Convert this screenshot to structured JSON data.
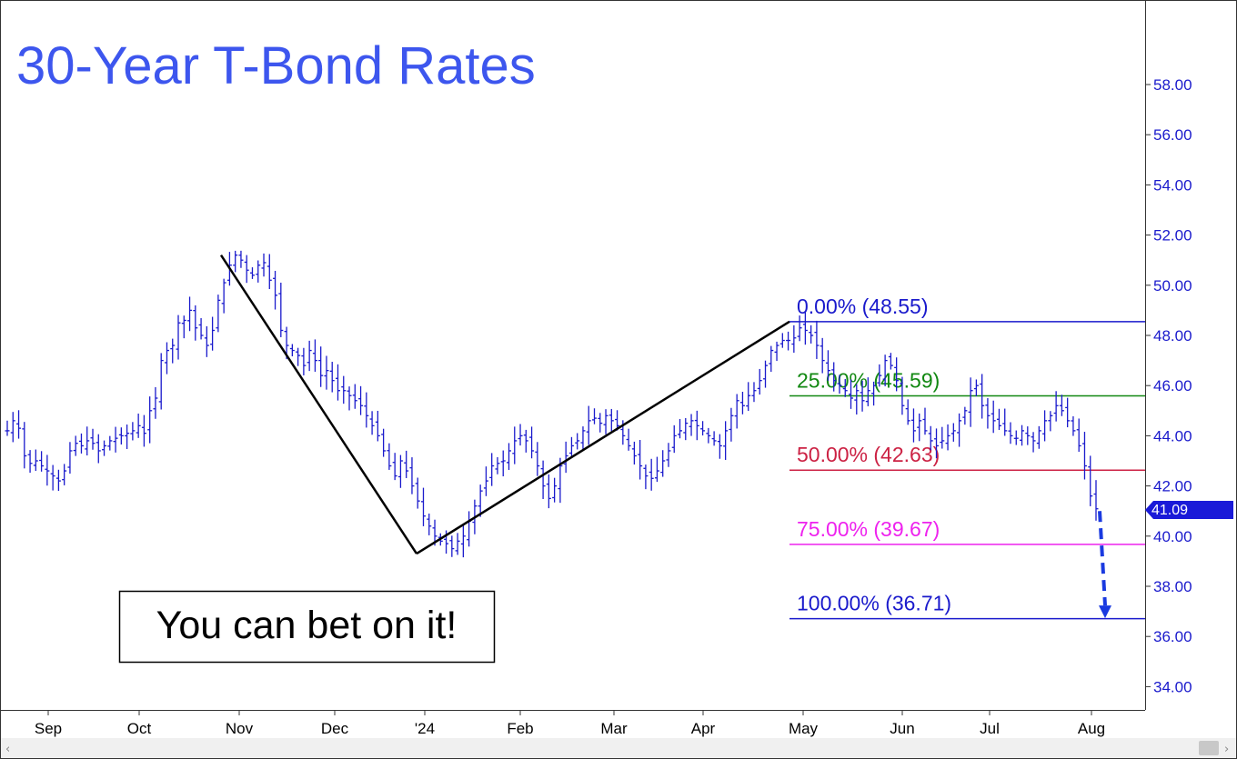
{
  "chart_data": {
    "type": "bar",
    "subtype": "ohlc",
    "title": "30-Year T-Bond Rates",
    "annotation_box": "You can bet on it!",
    "last_price": "41.09",
    "y_axis": {
      "side": "right",
      "ylim": [
        33.0,
        61.5
      ],
      "ticks": [
        "34.00",
        "36.00",
        "38.00",
        "40.00",
        "42.00",
        "44.00",
        "46.00",
        "48.00",
        "50.00",
        "52.00",
        "54.00",
        "56.00",
        "58.00"
      ]
    },
    "x_axis": {
      "labels": [
        "Sep",
        "Oct",
        "Nov",
        "Dec",
        "'24",
        "Feb",
        "Mar",
        "Apr",
        "May",
        "Jun",
        "Jul",
        "Aug"
      ]
    },
    "fib_levels": [
      {
        "label": "0.00% (48.55)",
        "value": 48.55,
        "color": "#1a1acc"
      },
      {
        "label": "25.00% (45.59)",
        "value": 45.59,
        "color": "#118811"
      },
      {
        "label": "50.00% (42.63)",
        "value": 42.63,
        "color": "#cc2244"
      },
      {
        "label": "75.00% (39.67)",
        "value": 39.67,
        "color": "#ee22ee"
      },
      {
        "label": "100.00% (36.71)",
        "value": 36.71,
        "color": "#1a1acc"
      }
    ],
    "trend_lines": [
      {
        "from": [
          "Oct 25",
          51.2
        ],
        "to": [
          "Dec 29",
          39.3
        ]
      },
      {
        "from": [
          "Dec 29",
          39.3
        ],
        "to": [
          "Apr 27",
          48.55
        ]
      }
    ],
    "projection_arrow": {
      "from": [
        "Aug 3",
        41.0
      ],
      "to": [
        "Aug 6",
        36.8
      ]
    },
    "series": [
      {
        "values": [
          44.2,
          44.6,
          44.3,
          43.2,
          42.9,
          43.0,
          42.8,
          42.6,
          42.4,
          42.2,
          42.6,
          43.4,
          43.7,
          43.6,
          43.8,
          43.7,
          43.4,
          43.6,
          43.8,
          43.9,
          44.0,
          44.1,
          44.2,
          44.4,
          44.1,
          45.0,
          45.5,
          47.0,
          47.4,
          47.6,
          48.5,
          48.6,
          49.0,
          48.3,
          48.0,
          47.6,
          48.2,
          49.4,
          50.1,
          50.8,
          51.2,
          51.0,
          50.6,
          50.4,
          50.8,
          50.9,
          50.2,
          49.6,
          48.2,
          47.6,
          47.4,
          47.2,
          46.8,
          47.4,
          47.0,
          46.4,
          46.6,
          46.2,
          45.8,
          45.8,
          45.6,
          45.4,
          45.2,
          44.8,
          44.4,
          44.0,
          43.4,
          42.8,
          42.4,
          43.0,
          42.6,
          42.0,
          41.4,
          40.8,
          40.4,
          40.0,
          39.8,
          39.7,
          39.5,
          39.8,
          40.0,
          40.6,
          41.2,
          41.8,
          42.2,
          42.8,
          42.9,
          43.0,
          43.4,
          43.8,
          44.0,
          43.8,
          43.4,
          42.8,
          42.0,
          41.5,
          42.0,
          42.8,
          43.2,
          43.6,
          43.8,
          44.2,
          44.6,
          44.7,
          44.5,
          44.8,
          44.6,
          44.4,
          44.0,
          43.6,
          43.2,
          42.8,
          42.4,
          42.3,
          42.6,
          43.0,
          43.4,
          44.0,
          44.2,
          44.5,
          44.6,
          44.4,
          44.2,
          44.0,
          43.8,
          43.6,
          44.2,
          44.8,
          45.4,
          45.2,
          45.6,
          45.8,
          46.2,
          46.8,
          47.4,
          47.6,
          47.8,
          47.8,
          47.9,
          48.3,
          48.2,
          48.0,
          47.6,
          47.0,
          46.6,
          46.2,
          46.0,
          45.8,
          45.5,
          45.8,
          45.4,
          45.8,
          46.0,
          46.4,
          47.0,
          46.8,
          46.2,
          45.2,
          44.6,
          44.2,
          44.6,
          44.2,
          43.8,
          43.6,
          43.8,
          44.0,
          44.2,
          44.6,
          45.0,
          45.8,
          46.0,
          45.2,
          44.8,
          44.6,
          44.4,
          44.2,
          44.0,
          43.9,
          44.2,
          44.0,
          43.8,
          44.2,
          44.6,
          44.8,
          45.2,
          45.0,
          44.6,
          44.2,
          43.6,
          42.8,
          41.6,
          41.09
        ]
      }
    ]
  }
}
